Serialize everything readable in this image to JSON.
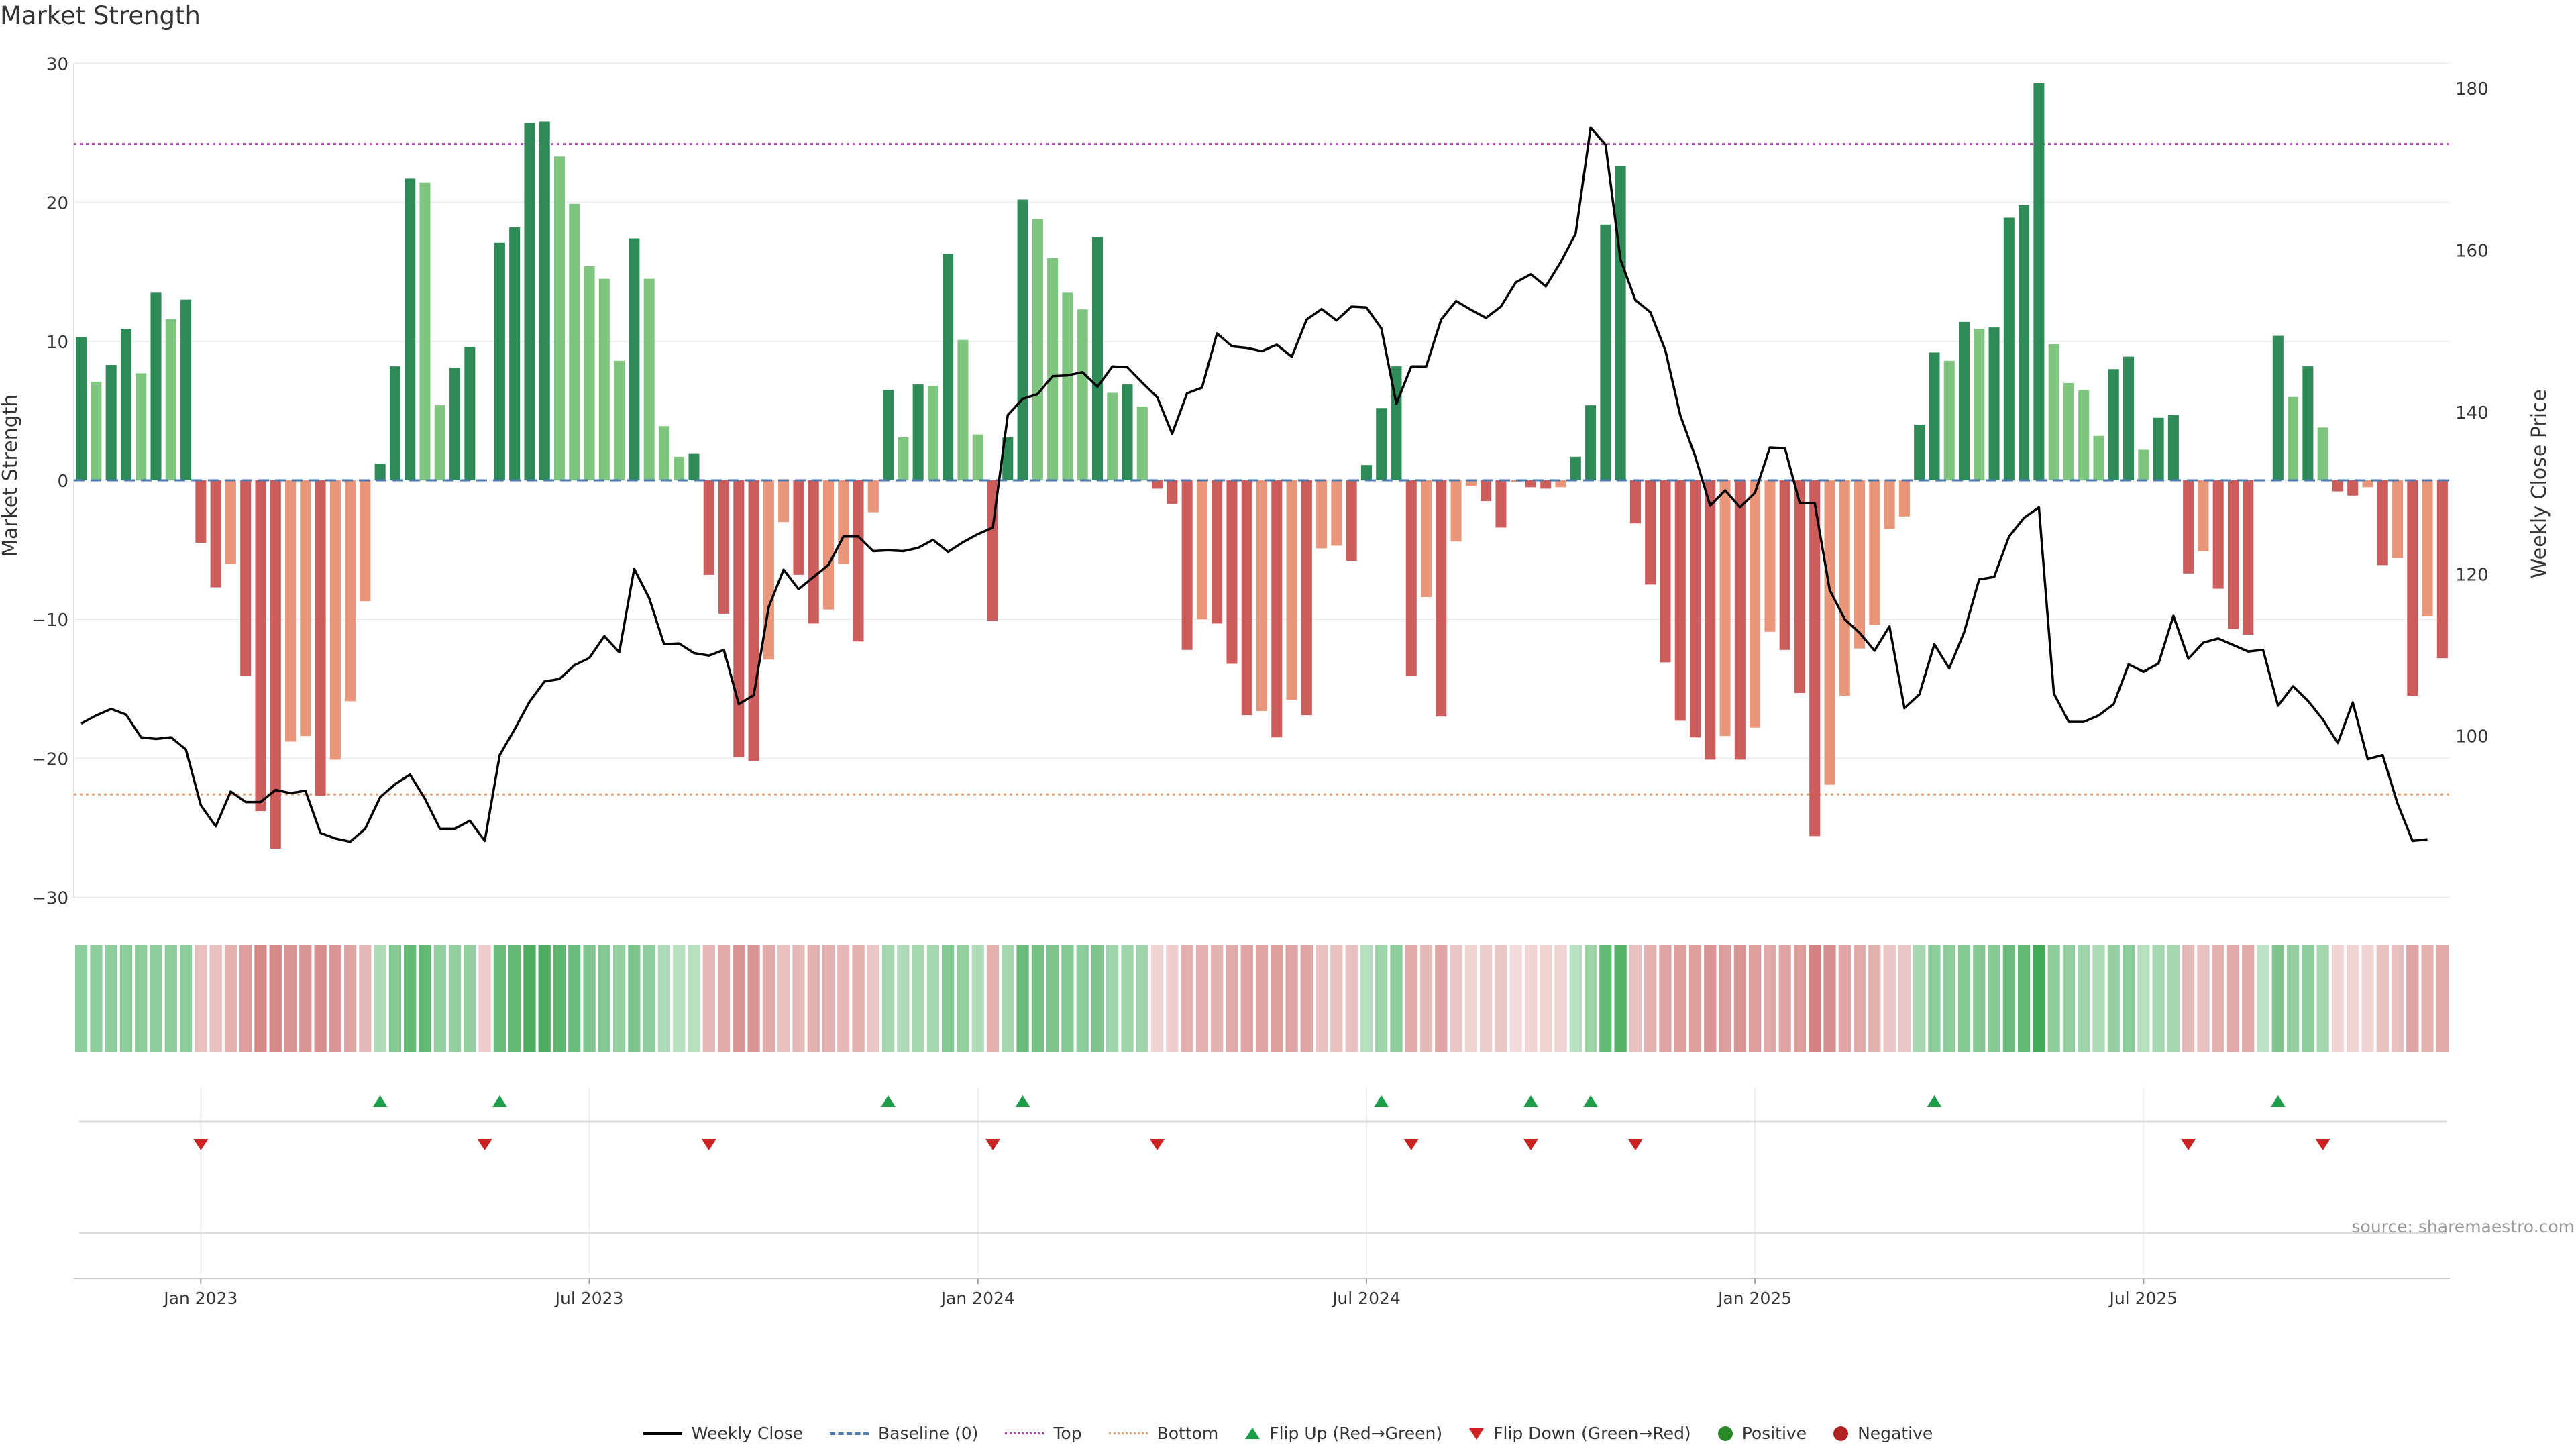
{
  "title": "Market Strength",
  "source": "source: sharemaestro.com",
  "colors": {
    "pos_dark": "#2e8b57",
    "pos_light": "#7fc47f",
    "neg_dark": "#cd5c5c",
    "neg_light": "#e9967a",
    "up_marker": "#1e9e4a",
    "down_marker": "#cc2222",
    "top_line": "#b040b0",
    "bottom_line": "#e3a070",
    "baseline": "#4a78b0"
  },
  "chart_data": {
    "type": "bar",
    "title": "Market Strength",
    "ylabel": "Market Strength",
    "y2label": "Weekly Close Price",
    "ylim": [
      -30,
      30
    ],
    "y2lim": [
      80,
      183
    ],
    "yticks": [
      "30",
      "20",
      "10",
      "0",
      "−10",
      "−20",
      "−30"
    ],
    "y2ticks": [
      "180",
      "160",
      "140",
      "120",
      "100"
    ],
    "top_threshold": 24.2,
    "bottom_threshold": -22.6,
    "xticks": [
      {
        "label": "Jan 2023",
        "week": 8
      },
      {
        "label": "Jul 2023",
        "week": 34
      },
      {
        "label": "Jan 2024",
        "week": 60
      },
      {
        "label": "Jul 2024",
        "week": 86
      },
      {
        "label": "Jan 2025",
        "week": 112
      },
      {
        "label": "Jul 2025",
        "week": 138
      }
    ],
    "strength": [
      10.3,
      7.1,
      8.3,
      10.9,
      7.7,
      13.5,
      11.6,
      13.0,
      -4.5,
      -7.7,
      -6.0,
      -14.1,
      -23.8,
      -26.5,
      -18.8,
      -18.4,
      -22.7,
      -20.1,
      -15.9,
      -8.7,
      1.2,
      8.2,
      21.7,
      21.4,
      5.4,
      8.1,
      9.6,
      0.0,
      17.1,
      18.2,
      25.7,
      25.8,
      23.3,
      19.9,
      15.4,
      14.5,
      8.6,
      17.4,
      14.5,
      3.9,
      1.7,
      1.9,
      -6.8,
      -9.6,
      -19.9,
      -20.2,
      -12.9,
      -3.0,
      -6.8,
      -10.3,
      -9.3,
      -6.0,
      -11.6,
      -2.3,
      6.5,
      3.1,
      6.9,
      6.8,
      16.3,
      10.1,
      3.3,
      -10.1,
      3.1,
      20.2,
      18.8,
      16.0,
      13.5,
      12.3,
      17.5,
      6.3,
      6.9,
      5.3,
      -0.6,
      -1.7,
      -12.2,
      -10.0,
      -10.3,
      -13.2,
      -16.9,
      -16.6,
      -18.5,
      -15.8,
      -16.9,
      -4.9,
      -4.7,
      -5.8,
      1.1,
      5.2,
      8.2,
      -14.1,
      -8.4,
      -17.0,
      -4.4,
      -0.4,
      -1.5,
      -3.4,
      -0.1,
      -0.5,
      -0.6,
      -0.5,
      1.7,
      5.4,
      18.4,
      22.6,
      -3.1,
      -7.5,
      -13.1,
      -17.3,
      -18.5,
      -20.1,
      -18.4,
      -20.1,
      -17.8,
      -10.9,
      -12.2,
      -15.3,
      -25.6,
      -21.9,
      -15.5,
      -12.1,
      -10.4,
      -3.5,
      -2.6,
      4.0,
      9.2,
      8.6,
      11.4,
      10.9,
      11.0,
      18.9,
      19.8,
      28.6,
      9.8,
      7.0,
      6.5,
      3.2,
      8.0,
      8.9,
      2.2,
      4.5,
      4.7,
      -6.7,
      -5.1,
      -7.8,
      -10.7,
      -11.1,
      0.0,
      10.4,
      6.0,
      8.2,
      3.8,
      -0.8,
      -1.1,
      -0.5,
      -6.1,
      -5.6,
      -15.5,
      -9.8,
      -12.8
    ],
    "close": [
      101.5,
      102.5,
      103.3,
      102.6,
      99.8,
      99.6,
      99.8,
      98.3,
      91.4,
      88.8,
      93.1,
      91.8,
      91.8,
      93.3,
      92.9,
      93.2,
      88.0,
      87.3,
      86.9,
      88.5,
      92.4,
      94.0,
      95.2,
      92.2,
      88.5,
      88.5,
      89.5,
      87.0,
      97.6,
      100.8,
      104.2,
      106.7,
      107.0,
      108.7,
      109.6,
      112.3,
      110.3,
      120.6,
      117.0,
      111.3,
      111.4,
      110.2,
      109.9,
      110.6,
      103.9,
      105.0,
      115.9,
      120.5,
      118.1,
      119.6,
      121.1,
      124.6,
      124.6,
      122.8,
      122.9,
      122.8,
      123.2,
      124.2,
      122.7,
      123.9,
      124.9,
      125.7,
      139.6,
      141.6,
      142.2,
      144.4,
      144.5,
      144.9,
      143.1,
      145.6,
      145.5,
      143.6,
      141.8,
      137.3,
      142.3,
      143.0,
      149.7,
      148.1,
      147.9,
      147.5,
      148.3,
      146.8,
      151.4,
      152.7,
      151.3,
      153.0,
      152.9,
      150.3,
      141.0,
      145.6,
      145.6,
      151.4,
      153.7,
      152.6,
      151.6,
      153.0,
      156.0,
      157.0,
      155.5,
      158.5,
      162.0,
      175.1,
      173.0,
      158.8,
      153.8,
      152.3,
      147.6,
      139.6,
      134.5,
      128.4,
      130.3,
      128.2,
      130.0,
      135.6,
      135.5,
      128.7,
      128.7,
      118.0,
      114.4,
      112.7,
      110.5,
      113.5,
      103.4,
      105.1,
      111.3,
      108.3,
      112.8,
      119.3,
      119.6,
      124.6,
      126.9,
      128.2,
      105.2,
      101.7,
      101.7,
      102.5,
      103.9,
      108.8,
      107.9,
      108.9,
      114.8,
      109.5,
      111.5,
      112.0,
      111.2,
      110.4,
      110.6,
      103.7,
      106.1,
      104.3,
      102.0,
      99.1,
      104.1,
      97.1,
      97.6,
      91.6,
      87.0,
      87.2
    ],
    "flip_up_weeks": [
      20,
      28,
      54,
      63,
      87,
      97,
      101,
      124,
      147
    ],
    "flip_down_weeks": [
      8,
      27,
      42,
      61,
      72,
      89,
      97,
      104,
      141,
      150
    ],
    "heat": [
      0.45,
      0.45,
      0.45,
      0.45,
      0.45,
      0.45,
      0.45,
      0.45,
      -0.3,
      -0.3,
      -0.4,
      -0.55,
      -0.7,
      -0.7,
      -0.6,
      -0.6,
      -0.65,
      -0.6,
      -0.5,
      -0.35,
      0.25,
      0.5,
      0.7,
      0.7,
      0.4,
      0.4,
      0.4,
      -0.2,
      0.65,
      0.7,
      0.85,
      0.85,
      0.75,
      0.65,
      0.55,
      0.5,
      0.4,
      0.55,
      0.45,
      0.25,
      0.2,
      0.2,
      -0.35,
      -0.45,
      -0.6,
      -0.6,
      -0.45,
      -0.3,
      -0.35,
      -0.4,
      -0.4,
      -0.35,
      -0.4,
      -0.25,
      0.3,
      0.25,
      0.3,
      0.3,
      0.5,
      0.4,
      0.25,
      -0.4,
      0.3,
      0.65,
      0.6,
      0.55,
      0.5,
      0.45,
      0.55,
      0.35,
      0.35,
      0.35,
      -0.15,
      -0.2,
      -0.4,
      -0.4,
      -0.4,
      -0.45,
      -0.5,
      -0.5,
      -0.55,
      -0.5,
      -0.5,
      -0.3,
      -0.3,
      -0.3,
      0.2,
      0.35,
      0.45,
      -0.45,
      -0.35,
      -0.5,
      -0.25,
      -0.15,
      -0.2,
      -0.25,
      -0.1,
      -0.15,
      -0.15,
      -0.15,
      0.2,
      0.35,
      0.7,
      0.8,
      -0.3,
      -0.4,
      -0.5,
      -0.55,
      -0.55,
      -0.6,
      -0.55,
      -0.6,
      -0.55,
      -0.45,
      -0.5,
      -0.55,
      -0.75,
      -0.65,
      -0.5,
      -0.45,
      -0.4,
      -0.25,
      -0.25,
      0.3,
      0.45,
      0.45,
      0.5,
      0.5,
      0.5,
      0.65,
      0.7,
      0.9,
      0.45,
      0.4,
      0.35,
      0.25,
      0.4,
      0.45,
      0.2,
      0.3,
      0.3,
      -0.35,
      -0.3,
      -0.4,
      -0.45,
      -0.45,
      0.15,
      0.55,
      0.4,
      0.45,
      0.3,
      -0.15,
      -0.15,
      -0.15,
      -0.3,
      -0.3,
      -0.5,
      -0.4,
      -0.45
    ]
  },
  "legend": [
    {
      "label": "Weekly Close",
      "kind": "line"
    },
    {
      "label": "Baseline (0)",
      "kind": "baseline"
    },
    {
      "label": "Top",
      "kind": "top"
    },
    {
      "label": "Bottom",
      "kind": "bottom"
    },
    {
      "label": "Flip Up (Red→Green)",
      "kind": "up"
    },
    {
      "label": "Flip Down (Green→Red)",
      "kind": "down"
    },
    {
      "label": "Positive",
      "kind": "pos"
    },
    {
      "label": "Negative",
      "kind": "neg"
    }
  ]
}
